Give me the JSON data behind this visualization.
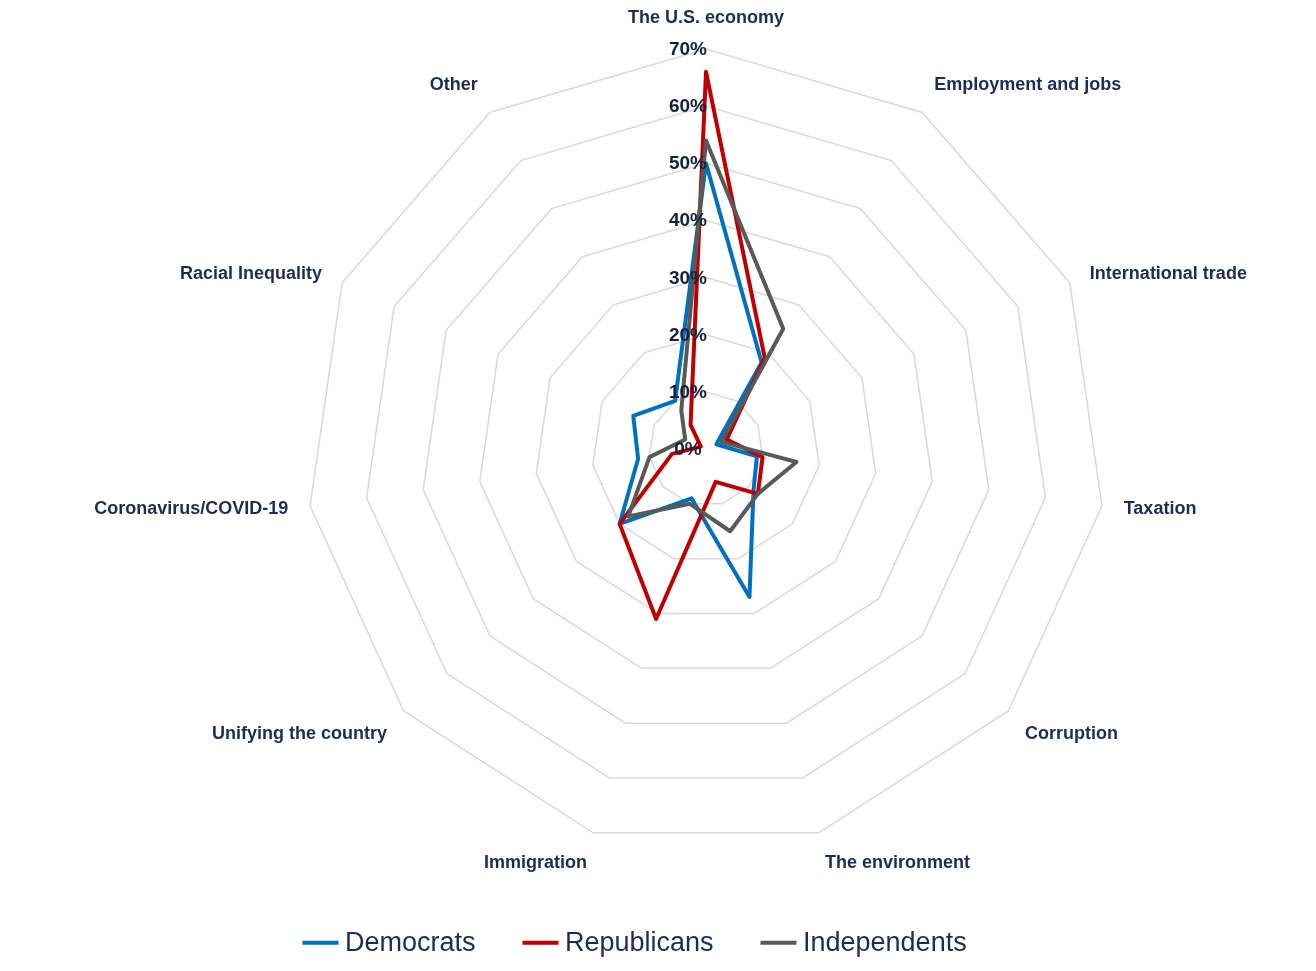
{
  "chart_data": {
    "type": "radar",
    "categories": [
      "The U.S. economy",
      "Employment and jobs",
      "International trade",
      "Taxation",
      "Corruption",
      "The environment",
      "Immigration",
      "Unifying the country",
      "Coronavirus/COVID-19",
      "Racial Inequality",
      "Other"
    ],
    "series": [
      {
        "name": "Democrats",
        "color": "#0070c0",
        "values": [
          50,
          18,
          2,
          9,
          11,
          27,
          9,
          20,
          12,
          14,
          10
        ]
      },
      {
        "name": "Republicans",
        "color": "#c00000",
        "values": [
          66,
          19,
          4,
          10,
          12,
          6,
          31,
          20,
          6,
          1,
          5
        ]
      },
      {
        "name": "Independents",
        "color": "#595959",
        "values": [
          54,
          25,
          3,
          16,
          12,
          15,
          10,
          18,
          10,
          4,
          8
        ]
      }
    ],
    "ylim": [
      0,
      70
    ],
    "yticks": [
      {
        "value": 0,
        "label": "0%"
      },
      {
        "value": 10,
        "label": "10%"
      },
      {
        "value": 20,
        "label": "20%"
      },
      {
        "value": 30,
        "label": "30%"
      },
      {
        "value": 40,
        "label": "40%"
      },
      {
        "value": 50,
        "label": "50%"
      },
      {
        "value": 60,
        "label": "60%"
      },
      {
        "value": 70,
        "label": "70%"
      }
    ],
    "grid": true,
    "legend": "bottom"
  }
}
